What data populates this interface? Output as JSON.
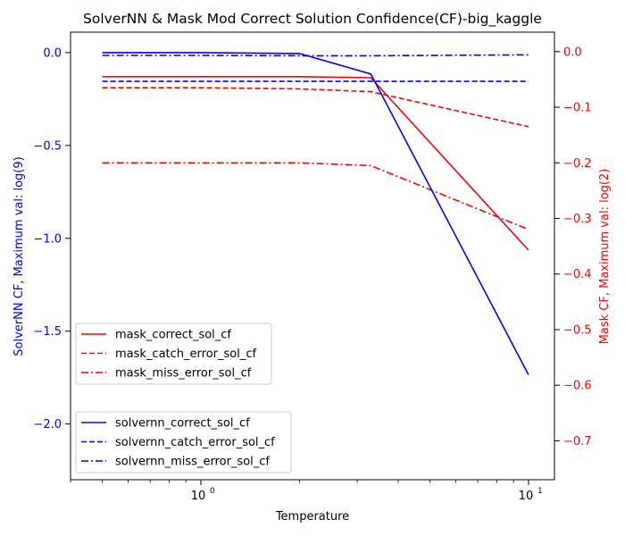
{
  "chart_data": {
    "type": "line",
    "title": "SolverNN & Mask Mod Correct Solution Confidence(CF)-big_kaggle",
    "xlabel": "Temperature",
    "x_scale": "log",
    "xlim": [
      0.4,
      12
    ],
    "x_ticks": [
      {
        "value": 1,
        "label": "10",
        "exp": "0"
      },
      {
        "value": 10,
        "label": "10",
        "exp": "1"
      }
    ],
    "left_axis": {
      "label": "SolverNN CF, Maximum val: log(9)",
      "color": "#0000ff",
      "ylim": [
        -2.3,
        0.11
      ],
      "ticks": [
        0.0,
        -0.5,
        -1.0,
        -1.5,
        -2.0
      ],
      "tick_labels": [
        "0.0",
        "−0.5",
        "−1.0",
        "−1.5",
        "−2.0"
      ]
    },
    "right_axis": {
      "label": "Mask CF, Maximum val: log(2)",
      "color": "#ff0000",
      "ylim": [
        -0.77,
        0.035
      ],
      "ticks": [
        0.0,
        -0.1,
        -0.2,
        -0.3,
        -0.4,
        -0.5,
        -0.6,
        -0.7
      ],
      "tick_labels": [
        "0.0",
        "−0.1",
        "−0.2",
        "−0.3",
        "−0.4",
        "−0.5",
        "−0.6",
        "−0.7"
      ]
    },
    "series": [
      {
        "name": "mask_correct_sol_cf",
        "axis": "right",
        "color": "#ff0000",
        "style": "solid",
        "x": [
          0.5,
          1,
          2,
          3.3,
          10
        ],
        "y": [
          -0.045,
          -0.045,
          -0.045,
          -0.047,
          -0.357
        ]
      },
      {
        "name": "mask_catch_error_sol_cf",
        "axis": "right",
        "color": "#ff0000",
        "style": "dashed",
        "x": [
          0.5,
          1,
          2,
          3.3,
          10
        ],
        "y": [
          -0.065,
          -0.065,
          -0.067,
          -0.072,
          -0.135
        ]
      },
      {
        "name": "mask_miss_error_sol_cf",
        "axis": "right",
        "color": "#ff0000",
        "style": "dashdot",
        "x": [
          0.5,
          1,
          2,
          3.3,
          10
        ],
        "y": [
          -0.2,
          -0.2,
          -0.2,
          -0.205,
          -0.32
        ]
      },
      {
        "name": "solvernn_correct_sol_cf",
        "axis": "left",
        "color": "#0000ff",
        "style": "solid",
        "x": [
          0.5,
          1,
          2,
          3.3,
          10
        ],
        "y": [
          0.0,
          0.0,
          -0.005,
          -0.115,
          -1.735
        ]
      },
      {
        "name": "solvernn_catch_error_sol_cf",
        "axis": "left",
        "color": "#0000ff",
        "style": "dashed",
        "x": [
          0.5,
          1,
          2,
          3.3,
          10
        ],
        "y": [
          -0.155,
          -0.155,
          -0.155,
          -0.155,
          -0.155
        ]
      },
      {
        "name": "solvernn_miss_error_sol_cf",
        "axis": "left",
        "color": "#0000ff",
        "style": "dashdot",
        "x": [
          0.5,
          1,
          2,
          3.3,
          10
        ],
        "y": [
          -0.015,
          -0.015,
          -0.017,
          -0.017,
          -0.012
        ]
      }
    ],
    "legends": [
      {
        "location": "center-left",
        "entries": [
          "mask_correct_sol_cf",
          "mask_catch_error_sol_cf",
          "mask_miss_error_sol_cf"
        ]
      },
      {
        "location": "lower-left",
        "entries": [
          "solvernn_correct_sol_cf",
          "solvernn_catch_error_sol_cf",
          "solvernn_miss_error_sol_cf"
        ]
      }
    ],
    "grid": false
  }
}
